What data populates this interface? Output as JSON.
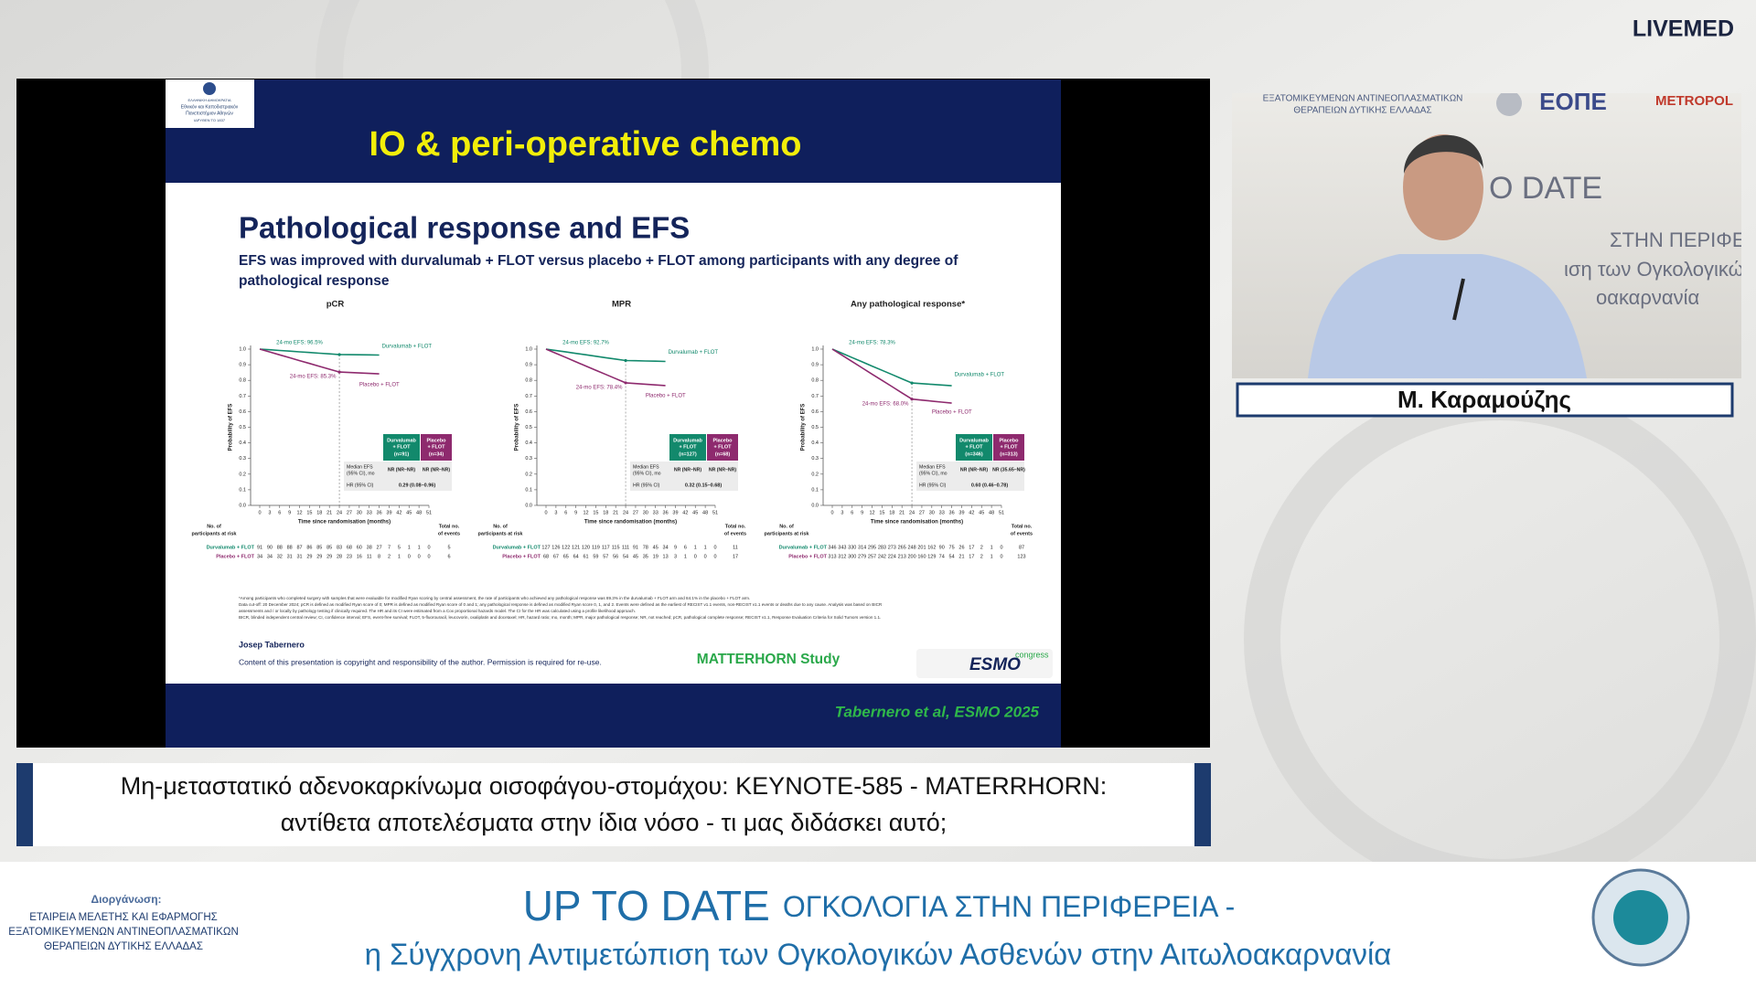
{
  "header": {
    "brand": "LIVEMED"
  },
  "slide": {
    "university": [
      "ΕΛΛΗΝΙΚΗ ΔΗΜΟΚΡΑΤΙΑ",
      "Εθνικόν και Καποδιστριακόν",
      "Πανεπιστήμιον Αθηνών",
      "ΙΔΡΥΘΕΝ ΤΟ 1837"
    ],
    "title": "IO & peri-operative chemo",
    "heading": "Pathological response and EFS",
    "subtitle": [
      "EFS was improved with durvalumab + FLOT versus placebo + FLOT among participants with any degree of",
      "pathological response"
    ],
    "y_label": "Probability of EFS",
    "x_label": "Time since randomisation (months)",
    "yticks": [
      {
        "value": 0,
        "label": "0.0"
      },
      0.1,
      0.2,
      0.3,
      0.4,
      0.5,
      0.6,
      0.7,
      0.8,
      0.9,
      {
        "value": 1,
        "label": "1.0"
      }
    ],
    "xticks": [
      0,
      3,
      6,
      9,
      12,
      15,
      18,
      21,
      24,
      27,
      30,
      33,
      36,
      39,
      42,
      45,
      48,
      51
    ],
    "risk_header": [
      "No. of",
      "participants at risk"
    ],
    "events_header": [
      "Total no.",
      "of events"
    ],
    "arms": [
      "Durvalumab + FLOT",
      "Placebo + FLOT"
    ],
    "box_heads": [
      [
        "Durvalumab",
        "+ FLOT"
      ],
      [
        "Placebo",
        "+ FLOT"
      ]
    ],
    "median_label": [
      "Median EFS",
      "(95% CI), mo"
    ],
    "hr_label": "HR (95% CI)",
    "panels": [
      {
        "title": "pCR",
        "arms": [
          {
            "efs24": {
              "value": 96.5,
              "label": "24-mo EFS: 96.5%"
            },
            "n": "(n=91)",
            "median": "NR (NR–NR)",
            "at_risk": [
              91,
              90,
              88,
              88,
              87,
              86,
              85,
              85,
              83,
              68,
              60,
              38,
              27,
              7,
              5,
              1,
              1,
              0
            ],
            "events": 5
          },
          {
            "efs24": {
              "value": 85.3,
              "label": "24-mo EFS: 85.3%"
            },
            "n": "(n=34)",
            "median": "NR (NR–NR)",
            "at_risk": [
              34,
              34,
              32,
              31,
              31,
              29,
              29,
              29,
              28,
              23,
              16,
              11,
              8,
              2,
              1,
              0,
              0,
              0
            ],
            "events": 6
          }
        ],
        "hr": "0.29 (0.08–0.96)"
      },
      {
        "title": "MPR",
        "arms": [
          {
            "efs24": {
              "value": 92.7,
              "label": "24-mo EFS: 92.7%"
            },
            "n": "(n=127)",
            "median": "NR (NR–NR)",
            "at_risk": [
              127,
              126,
              122,
              121,
              120,
              119,
              117,
              115,
              111,
              91,
              78,
              45,
              34,
              9,
              6,
              1,
              1,
              0
            ],
            "events": 11
          },
          {
            "efs24": {
              "value": 78.4,
              "label": "24-mo EFS: 78.4%"
            },
            "n": "(n=68)",
            "median": "NR (NR–NR)",
            "at_risk": [
              68,
              67,
              65,
              64,
              61,
              59,
              57,
              56,
              54,
              45,
              35,
              19,
              13,
              3,
              1,
              0,
              0,
              0
            ],
            "events": 17
          }
        ],
        "hr": "0.32 (0.15–0.68)"
      },
      {
        "title": "Any pathological response*",
        "arms": [
          {
            "efs24": {
              "value": 78.3,
              "label": "24-mo EFS: 78.3%"
            },
            "n": "(n=346)",
            "median": "NR (NR–NR)",
            "at_risk": [
              346,
              343,
              330,
              314,
              295,
              283,
              273,
              265,
              248,
              201,
              162,
              90,
              75,
              26,
              17,
              2,
              1,
              0
            ],
            "events": 87
          },
          {
            "efs24": {
              "value": 68.0,
              "label": "24-mo EFS: 68.0%"
            },
            "n": "(n=313)",
            "median": "NR (35.65–NR)",
            "at_risk": [
              313,
              312,
              300,
              279,
              257,
              242,
              224,
              213,
              200,
              160,
              129,
              74,
              54,
              21,
              17,
              2,
              1,
              0
            ],
            "events": 123
          }
        ],
        "hr": "0.60 (0.46–0.78)"
      }
    ],
    "footnotes": [
      "*Among participants who completed surgery with samples that were evaluable for modified Ryan scoring by central assessment, the rate of participants who achieved any pathological response was 89.3% in the durvalumab + FLOT arm and 84.1% in the placebo + FLOT arm.",
      "Data cut-off: 20 December 2024; pCR is defined as modified Ryan score of 0; MPR is defined as modified Ryan score of 0 and 1; any pathological response is defined as modified Ryan score 0, 1, and 2. Events were defined as the earliest of RECIST v1.1 events, non-RECIST v1.1 events or deaths due to any cause. Analysis was based on BICR",
      "assessments and / or locally by pathology testing if clinically required. The HR and its CI were estimated from a Cox proportional hazards model. The CI for the HR was calculated using a profile likelihood approach.",
      "BICR, blinded independent central review; CI, confidence interval; EFS, event-free survival; FLOT, 5-fluorouracil, leucovorin, oxaliplatin and docetaxel; HR, hazard ratio; mo, month; MPR, major pathological response; NR, not reached; pCR, pathological complete response; RECIST v1.1, Response Evaluation Criteria for Solid Tumors version 1.1."
    ],
    "presenter": "Josep Tabernero",
    "copyright": "Content of this presentation is copyright and responsibility of the author. Permission is required for re-use.",
    "study": "MATTERHORN Study",
    "congress": [
      "ESMO",
      "congress"
    ],
    "citation": "Tabernero et al, ESMO 2025"
  },
  "video": {
    "backdrop": [
      "ΕΞΑΤΟΜΙΚΕΥΜΕΝΩΝ ΑΝΤΙΝΕΟΠΛΑΣΜΑΤΙΚΩΝ",
      "ΘΕΡΑΠΕΙΩΝ ΔΥΤΙΚΗΣ ΕΛΛΑΔΑΣ",
      "ΕΟΠΕ",
      "METROPOL",
      "O DATE",
      "ΣΤΗΝ ΠΕΡΙΦΕΡΕΙΑ -",
      "ιση των Ογκολογικώ",
      "οακαρνανία"
    ],
    "speaker": "Μ. Καραμούζης"
  },
  "caption": [
    "Μη-μεταστατικό αδενοκαρκίνωμα οισοφάγου-στομάχου: KEYNOTE-585 - MATERRHORN:",
    "αντίθετα αποτελέσματα στην ίδια νόσο - τι μας διδάσκει αυτό;"
  ],
  "footer": {
    "organizer_label": "Διοργάνωση:",
    "organizer": [
      "ΕΤΑΙΡΕΙΑ ΜΕΛΕΤΗΣ ΚΑΙ ΕΦΑΡΜΟΓΗΣ",
      "ΕΞΑΤΟΜΙΚΕΥΜΕΝΩΝ ΑΝΤΙΝΕΟΠΛΑΣΜΑΤΙΚΩΝ",
      "ΘΕΡΑΠΕΙΩΝ ΔΥΤΙΚΗΣ ΕΛΛΑΔΑΣ"
    ],
    "event": [
      "UP TO DATE",
      "ΟΓΚΟΛΟΓΙΑ ΣΤΗΝ ΠΕΡΙΦΕΡΕΙΑ -"
    ],
    "event_subtitle": "η Σύγχρονη Αντιμετώπιση των Ογκολογικών Ασθενών στην Αιτωλοακαρνανία"
  }
}
